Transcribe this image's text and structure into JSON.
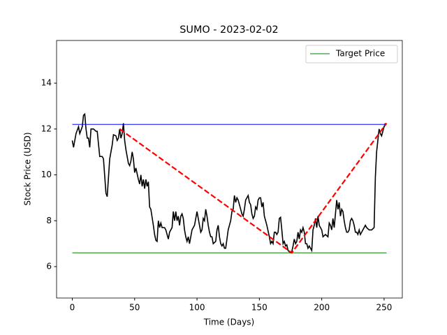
{
  "chart_data": {
    "type": "line",
    "title": "SUMO - 2023-02-02",
    "xlabel": "Time (Days)",
    "ylabel": "Stock Price (USD)",
    "xlim": [
      -12.6,
      264.6
    ],
    "ylim": [
      4.63,
      15.86
    ],
    "xticks": [
      0,
      50,
      100,
      150,
      200,
      250
    ],
    "yticks": [
      6,
      8,
      10,
      12,
      14
    ],
    "legend_position": "upper right",
    "series": [
      {
        "color": "#000000",
        "x": [
          0,
          1,
          3,
          5,
          6,
          8,
          9,
          10,
          11,
          12,
          13,
          14,
          15,
          17,
          19,
          20,
          22,
          24,
          25,
          27,
          28,
          30,
          32,
          33,
          35,
          36,
          37,
          38,
          39,
          40,
          41,
          42,
          43,
          45,
          46,
          47,
          48,
          49,
          50,
          51,
          53,
          54,
          55,
          56,
          57,
          58,
          59,
          60,
          61,
          62,
          63,
          65,
          66,
          67,
          68,
          69,
          70,
          71,
          72,
          74,
          75,
          77,
          78,
          80,
          81,
          82,
          83,
          84,
          85,
          86,
          87,
          88,
          89,
          90,
          91,
          92,
          93,
          94,
          96,
          98,
          100,
          101,
          102,
          103,
          104,
          105,
          106,
          107,
          108,
          109,
          110,
          111,
          112,
          113,
          115,
          116,
          117,
          118,
          119,
          120,
          121,
          122,
          123,
          124,
          125,
          127,
          128,
          129,
          130,
          131,
          132,
          133,
          134,
          135,
          136,
          137,
          138,
          139,
          140,
          141,
          142,
          143,
          144,
          145,
          146,
          147,
          148,
          149,
          150,
          151,
          152,
          153,
          154,
          156,
          158,
          159,
          160,
          161,
          162,
          163,
          164,
          165,
          166,
          167,
          168,
          169,
          170,
          171,
          172,
          173,
          174,
          175,
          176,
          177,
          178,
          179,
          180,
          181,
          182,
          183,
          184,
          185,
          186,
          187,
          188,
          189,
          190,
          191,
          192,
          193,
          194,
          195,
          196,
          197,
          198,
          200,
          201,
          203,
          205,
          206,
          207,
          208,
          209,
          210,
          211,
          212,
          213,
          214,
          215,
          216,
          217,
          218,
          219,
          220,
          221,
          222,
          223,
          224,
          225,
          226,
          227,
          228,
          229,
          230,
          231,
          232,
          233,
          235,
          236,
          238,
          240,
          242,
          243,
          244,
          245,
          246,
          247,
          248,
          249,
          250,
          251
        ],
        "values": [
          11.5,
          11.2,
          11.8,
          12.1,
          11.8,
          12.1,
          12.6,
          12.65,
          12.0,
          11.6,
          11.6,
          11.2,
          12.0,
          12.0,
          11.9,
          11.9,
          10.8,
          10.8,
          10.7,
          9.2,
          9.05,
          10.7,
          11.3,
          11.75,
          11.7,
          11.5,
          11.6,
          12.0,
          11.6,
          11.8,
          12.25,
          11.5,
          11.1,
          10.5,
          10.4,
          10.6,
          11.0,
          10.7,
          10.1,
          10.3,
          9.8,
          9.6,
          10.0,
          9.5,
          9.8,
          9.4,
          9.8,
          9.5,
          9.7,
          8.6,
          8.5,
          7.8,
          7.4,
          7.15,
          7.1,
          8.0,
          7.7,
          7.9,
          7.7,
          7.7,
          7.6,
          7.2,
          7.5,
          7.7,
          8.4,
          8.0,
          8.4,
          8.0,
          8.2,
          7.8,
          8.2,
          8.3,
          8.1,
          7.6,
          7.3,
          7.1,
          7.3,
          7.0,
          7.6,
          7.8,
          8.4,
          8.1,
          7.8,
          7.5,
          7.6,
          8.1,
          8.0,
          8.5,
          8.2,
          7.8,
          7.5,
          7.3,
          7.3,
          7.0,
          7.1,
          7.6,
          7.8,
          7.3,
          7.0,
          6.9,
          7.0,
          6.8,
          6.8,
          7.2,
          7.6,
          8.0,
          8.4,
          8.5,
          9.1,
          8.8,
          9.0,
          8.9,
          8.7,
          8.5,
          8.3,
          8.2,
          8.5,
          8.9,
          9.0,
          9.1,
          8.8,
          8.7,
          8.3,
          8.1,
          8.2,
          8.6,
          8.5,
          8.9,
          9.0,
          9.0,
          8.6,
          8.8,
          8.2,
          7.8,
          7.3,
          7.0,
          7.1,
          7.0,
          7.5,
          7.5,
          7.4,
          7.5,
          8.1,
          8.15,
          7.6,
          7.0,
          7.1,
          6.9,
          6.95,
          6.7,
          6.65,
          6.6,
          6.65,
          6.9,
          7.2,
          7.0,
          7.1,
          7.5,
          7.2,
          7.6,
          7.5,
          7.7,
          7.5,
          7.0,
          7.0,
          6.8,
          6.9,
          6.8,
          6.7,
          7.6,
          7.8,
          8.1,
          7.7,
          8.2,
          7.8,
          7.6,
          7.3,
          7.4,
          7.3,
          7.9,
          7.8,
          7.6,
          8.1,
          7.7,
          8.3,
          8.9,
          8.5,
          8.8,
          8.2,
          8.5,
          8.4,
          8.0,
          7.7,
          7.5,
          7.5,
          7.6,
          8.0,
          8.1,
          8.0,
          7.8,
          7.5,
          7.5,
          7.4,
          7.6,
          7.4,
          7.5,
          7.6,
          7.8,
          7.7,
          7.6,
          7.6,
          7.7,
          9.9,
          11.0,
          11.5,
          12.0,
          11.8,
          11.7,
          11.9,
          12.1,
          12.25
        ]
      },
      {
        "color": "#0000ff",
        "x": [
          0,
          252
        ],
        "values": [
          12.2,
          12.2
        ]
      },
      {
        "name": "Target Price",
        "color": "#008000",
        "x": [
          0,
          252
        ],
        "values": [
          6.6,
          6.6
        ]
      },
      {
        "color": "#ff0000",
        "dashed": true,
        "x": [
          38,
          176,
          252
        ],
        "values": [
          12.0,
          6.6,
          12.25
        ]
      }
    ]
  }
}
